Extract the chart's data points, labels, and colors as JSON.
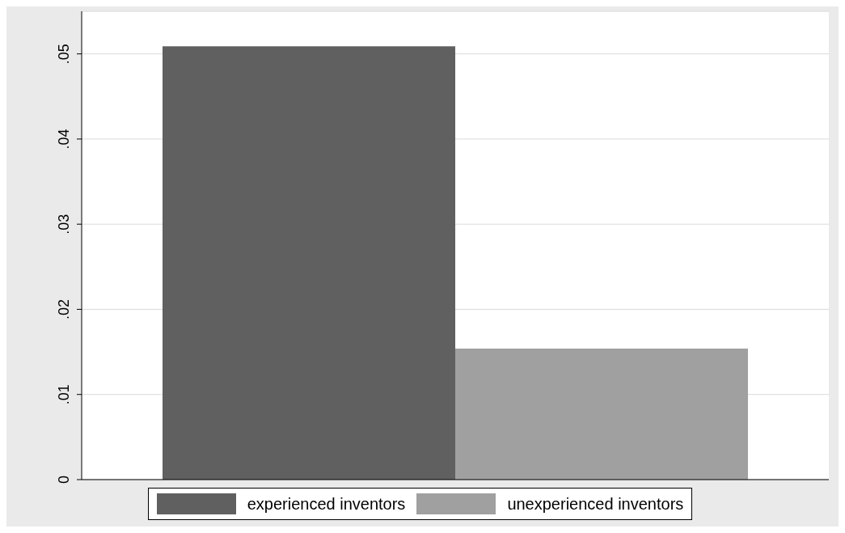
{
  "chart_data": {
    "type": "bar",
    "categories": [
      null
    ],
    "series": [
      {
        "name": "experienced inventors",
        "color": "#606060",
        "values": [
          0.0509
        ]
      },
      {
        "name": "unexperienced inventors",
        "color": "#a0a0a0",
        "values": [
          0.0154
        ]
      }
    ],
    "ylim": [
      0,
      0.055
    ],
    "yticks": [
      {
        "value": 0,
        "label": "0"
      },
      {
        "value": 0.01,
        "label": ".01"
      },
      {
        "value": 0.02,
        "label": ".02"
      },
      {
        "value": 0.03,
        "label": ".03"
      },
      {
        "value": 0.04,
        "label": ".04"
      },
      {
        "value": 0.05,
        "label": ".05"
      }
    ],
    "grid": "y",
    "legend": "bottom"
  }
}
